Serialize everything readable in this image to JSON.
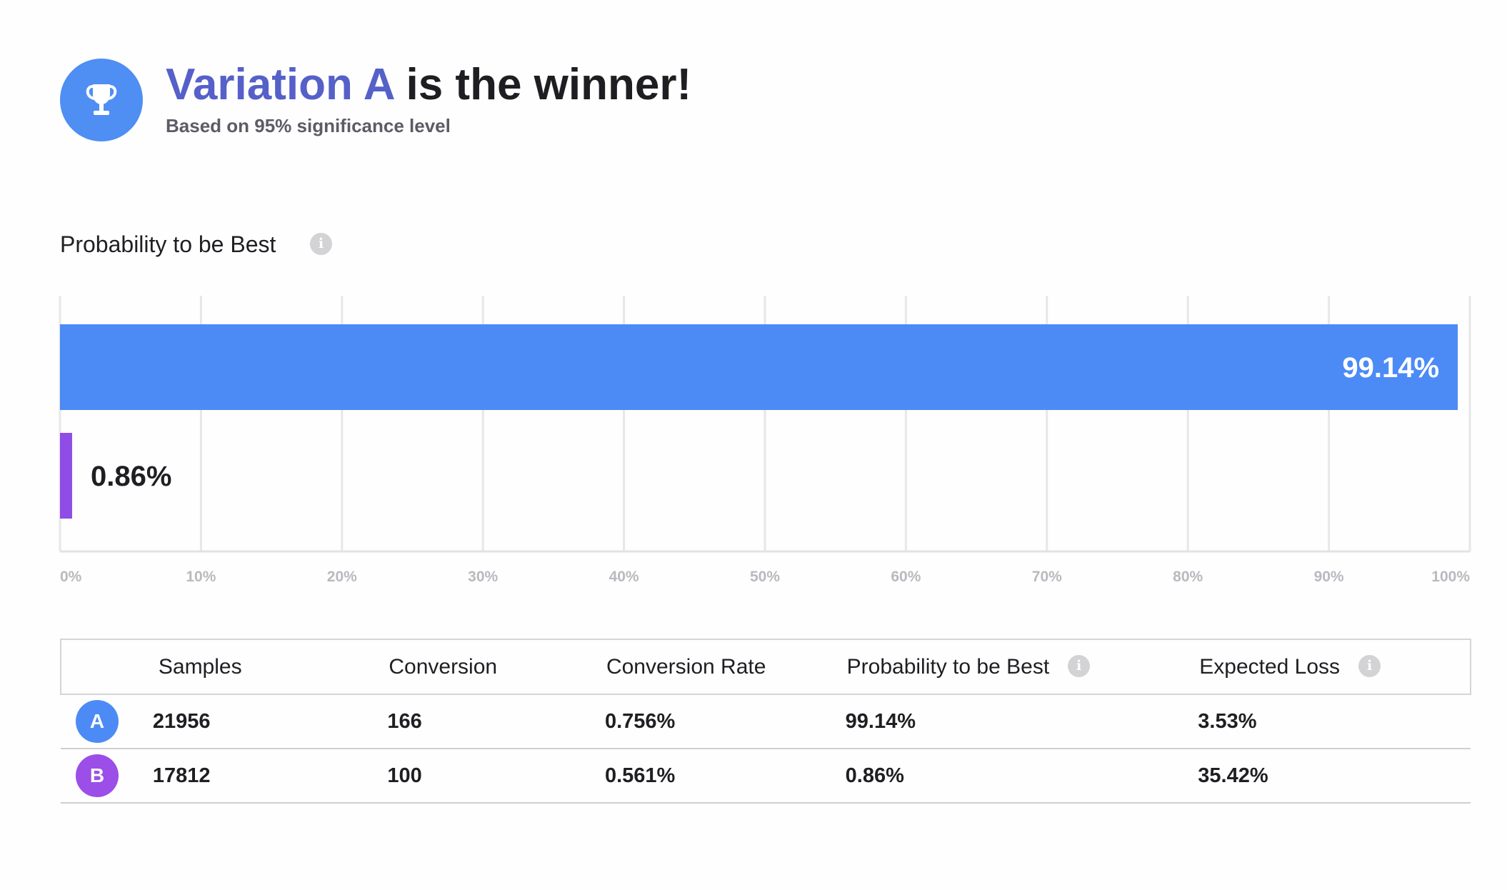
{
  "header": {
    "winner_name": "Variation A",
    "winner_suffix": " is the winner!",
    "subtitle": "Based on 95% significance level",
    "icon": "trophy-icon"
  },
  "section": {
    "title": "Probability to be Best",
    "info_icon": "info-icon",
    "info_glyph": "i"
  },
  "chart_data": {
    "type": "bar",
    "orientation": "horizontal",
    "categories": [
      "A",
      "B"
    ],
    "values": [
      99.14,
      0.86
    ],
    "value_labels": [
      "99.14%",
      "0.86%"
    ],
    "colors": [
      "#4c8bf5",
      "#8f4ce6"
    ],
    "xlim": [
      0,
      100
    ],
    "x_ticks": [
      "0%",
      "10%",
      "20%",
      "30%",
      "40%",
      "50%",
      "60%",
      "70%",
      "80%",
      "90%",
      "100%"
    ],
    "grid": true
  },
  "table": {
    "headers": [
      "",
      "Samples",
      "Conversion",
      "Conversion Rate",
      "Probability to be Best",
      "Expected Loss"
    ],
    "rows": [
      {
        "variant": "A",
        "color": "#4c8bf5",
        "samples": "21956",
        "conversion": "166",
        "conversion_rate": "0.756%",
        "probability": "99.14%",
        "expected_loss": "3.53%"
      },
      {
        "variant": "B",
        "color": "#9b4ee8",
        "samples": "17812",
        "conversion": "100",
        "conversion_rate": "0.561%",
        "probability": "0.86%",
        "expected_loss": "35.42%"
      }
    ]
  }
}
